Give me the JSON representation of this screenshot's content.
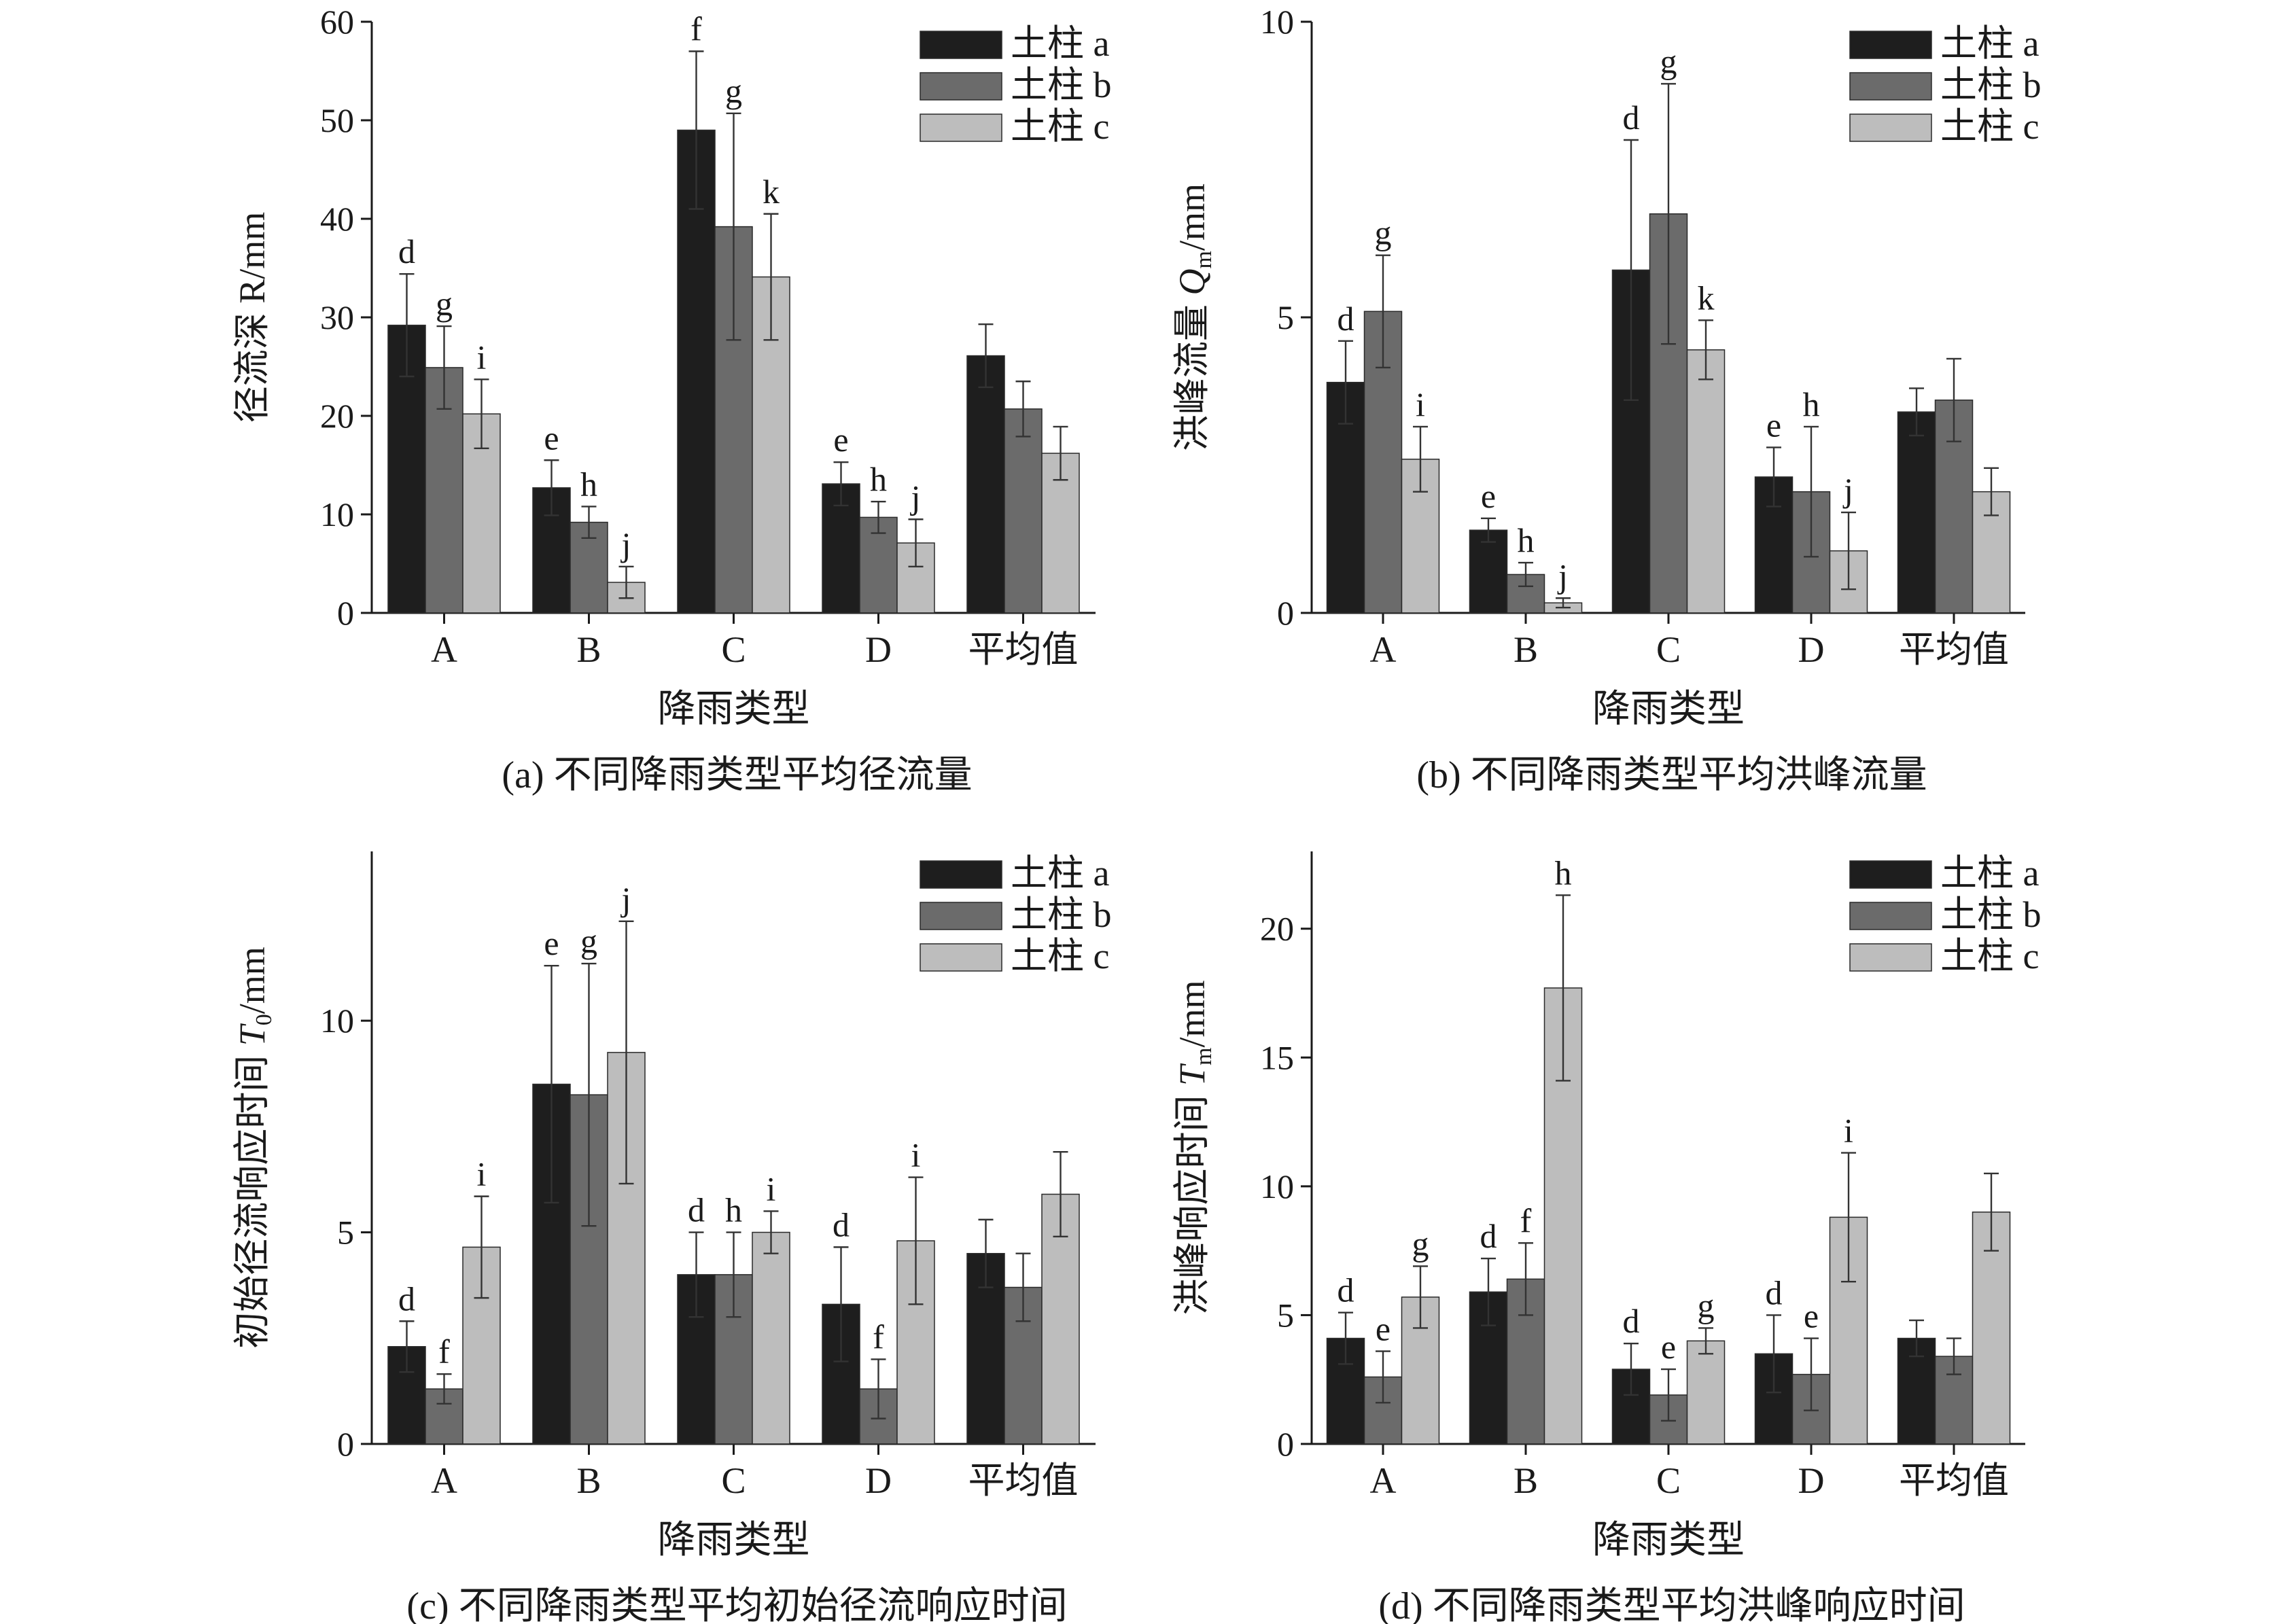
{
  "colors": {
    "series_a": "#1e1e1e",
    "series_b": "#6b6b6b",
    "series_c": "#bdbdbd"
  },
  "chart_data": [
    {
      "type": "bar",
      "panel": "a",
      "caption": "(a) 不同降雨类型平均径流量",
      "xlabel": "降雨类型",
      "ylabel": "径流深 R/mm",
      "ylim": [
        0,
        60
      ],
      "yticks": [
        0,
        10,
        20,
        30,
        40,
        50,
        60
      ],
      "categories": [
        "A",
        "B",
        "C",
        "D",
        "平均值"
      ],
      "legend_position": "top-right",
      "series": [
        {
          "name": "土柱 a",
          "values": [
            29.2,
            12.7,
            49.0,
            13.1,
            26.1
          ],
          "errors": [
            5.2,
            2.8,
            8.0,
            2.2,
            3.2
          ],
          "labels": [
            "d",
            "e",
            "f",
            "e",
            ""
          ]
        },
        {
          "name": "土柱 b",
          "values": [
            24.9,
            9.2,
            39.2,
            9.7,
            20.7
          ],
          "errors": [
            4.2,
            1.6,
            11.5,
            1.6,
            2.8
          ],
          "labels": [
            "g",
            "h",
            "g",
            "h",
            ""
          ]
        },
        {
          "name": "土柱 c",
          "values": [
            20.2,
            3.1,
            34.1,
            7.1,
            16.2
          ],
          "errors": [
            3.5,
            1.6,
            6.4,
            2.4,
            2.7
          ],
          "labels": [
            "i",
            "j",
            "k",
            "j",
            ""
          ]
        }
      ]
    },
    {
      "type": "bar",
      "panel": "b",
      "caption": "(b) 不同降雨类型平均洪峰流量",
      "xlabel": "降雨类型",
      "ylabel": "洪峰流量 Qm/mm",
      "ylabel_parts": {
        "prefix": "洪峰流量 ",
        "var": "Q",
        "sub": "m",
        "unit": "/mm"
      },
      "ylim": [
        0,
        10
      ],
      "yticks": [
        0,
        5,
        10
      ],
      "categories": [
        "A",
        "B",
        "C",
        "D",
        "平均值"
      ],
      "legend_position": "top-right",
      "series": [
        {
          "name": "土柱 a",
          "values": [
            3.9,
            1.4,
            5.8,
            2.3,
            3.4
          ],
          "errors": [
            0.7,
            0.2,
            2.2,
            0.5,
            0.4
          ],
          "labels": [
            "d",
            "e",
            "d",
            "e",
            ""
          ]
        },
        {
          "name": "土柱 b",
          "values": [
            5.1,
            0.65,
            6.75,
            2.05,
            3.6
          ],
          "errors": [
            0.95,
            0.2,
            2.2,
            1.1,
            0.7
          ],
          "labels": [
            "g",
            "h",
            "g",
            "h",
            ""
          ]
        },
        {
          "name": "土柱 c",
          "values": [
            2.6,
            0.17,
            4.45,
            1.05,
            2.05
          ],
          "errors": [
            0.55,
            0.08,
            0.5,
            0.65,
            0.4
          ],
          "labels": [
            "i",
            "j",
            "k",
            "j",
            ""
          ]
        }
      ]
    },
    {
      "type": "bar",
      "panel": "c",
      "caption": "(c) 不同降雨类型平均初始径流响应时间",
      "xlabel": "降雨类型",
      "ylabel": "初始径流响应时间 T0/mm",
      "ylabel_parts": {
        "prefix": "初始径流响应时间 ",
        "var": "T",
        "sub": "0",
        "unit": "/mm"
      },
      "ylim": [
        0,
        14
      ],
      "yticks": [
        0,
        5,
        10
      ],
      "categories": [
        "A",
        "B",
        "C",
        "D",
        "平均值"
      ],
      "legend_position": "top-right",
      "series": [
        {
          "name": "土柱 a",
          "values": [
            2.3,
            8.5,
            4.0,
            3.3,
            4.5
          ],
          "errors": [
            0.6,
            2.8,
            1.0,
            1.35,
            0.8
          ],
          "labels": [
            "d",
            "e",
            "d",
            "d",
            ""
          ]
        },
        {
          "name": "土柱 b",
          "values": [
            1.3,
            8.25,
            4.0,
            1.3,
            3.7
          ],
          "errors": [
            0.35,
            3.1,
            1.0,
            0.7,
            0.8
          ],
          "labels": [
            "f",
            "g",
            "h",
            "f",
            ""
          ]
        },
        {
          "name": "土柱 c",
          "values": [
            4.65,
            9.25,
            5.0,
            4.8,
            5.9
          ],
          "errors": [
            1.2,
            3.1,
            0.5,
            1.5,
            1.0
          ],
          "labels": [
            "i",
            "j",
            "i",
            "i",
            ""
          ]
        }
      ]
    },
    {
      "type": "bar",
      "panel": "d",
      "caption": "(d) 不同降雨类型平均洪峰响应时间",
      "xlabel": "降雨类型",
      "ylabel": "洪峰响应时间 Tm/mm",
      "ylabel_parts": {
        "prefix": "洪峰响应时间 ",
        "var": "T",
        "sub": "m",
        "unit": "/mm"
      },
      "ylim": [
        0,
        23
      ],
      "yticks": [
        0,
        5,
        10,
        15,
        20
      ],
      "categories": [
        "A",
        "B",
        "C",
        "D",
        "平均值"
      ],
      "legend_position": "top-right",
      "series": [
        {
          "name": "土柱 a",
          "values": [
            4.1,
            5.9,
            2.9,
            3.5,
            4.1
          ],
          "errors": [
            1.0,
            1.3,
            1.0,
            1.5,
            0.7
          ],
          "labels": [
            "d",
            "d",
            "d",
            "d",
            ""
          ]
        },
        {
          "name": "土柱 b",
          "values": [
            2.6,
            6.4,
            1.9,
            2.7,
            3.4
          ],
          "errors": [
            1.0,
            1.4,
            1.0,
            1.4,
            0.7
          ],
          "labels": [
            "e",
            "f",
            "e",
            "e",
            ""
          ]
        },
        {
          "name": "土柱 c",
          "values": [
            5.7,
            17.7,
            4.0,
            8.8,
            9.0
          ],
          "errors": [
            1.2,
            3.6,
            0.5,
            2.5,
            1.5
          ],
          "labels": [
            "g",
            "h",
            "g",
            "i",
            ""
          ]
        }
      ]
    }
  ]
}
